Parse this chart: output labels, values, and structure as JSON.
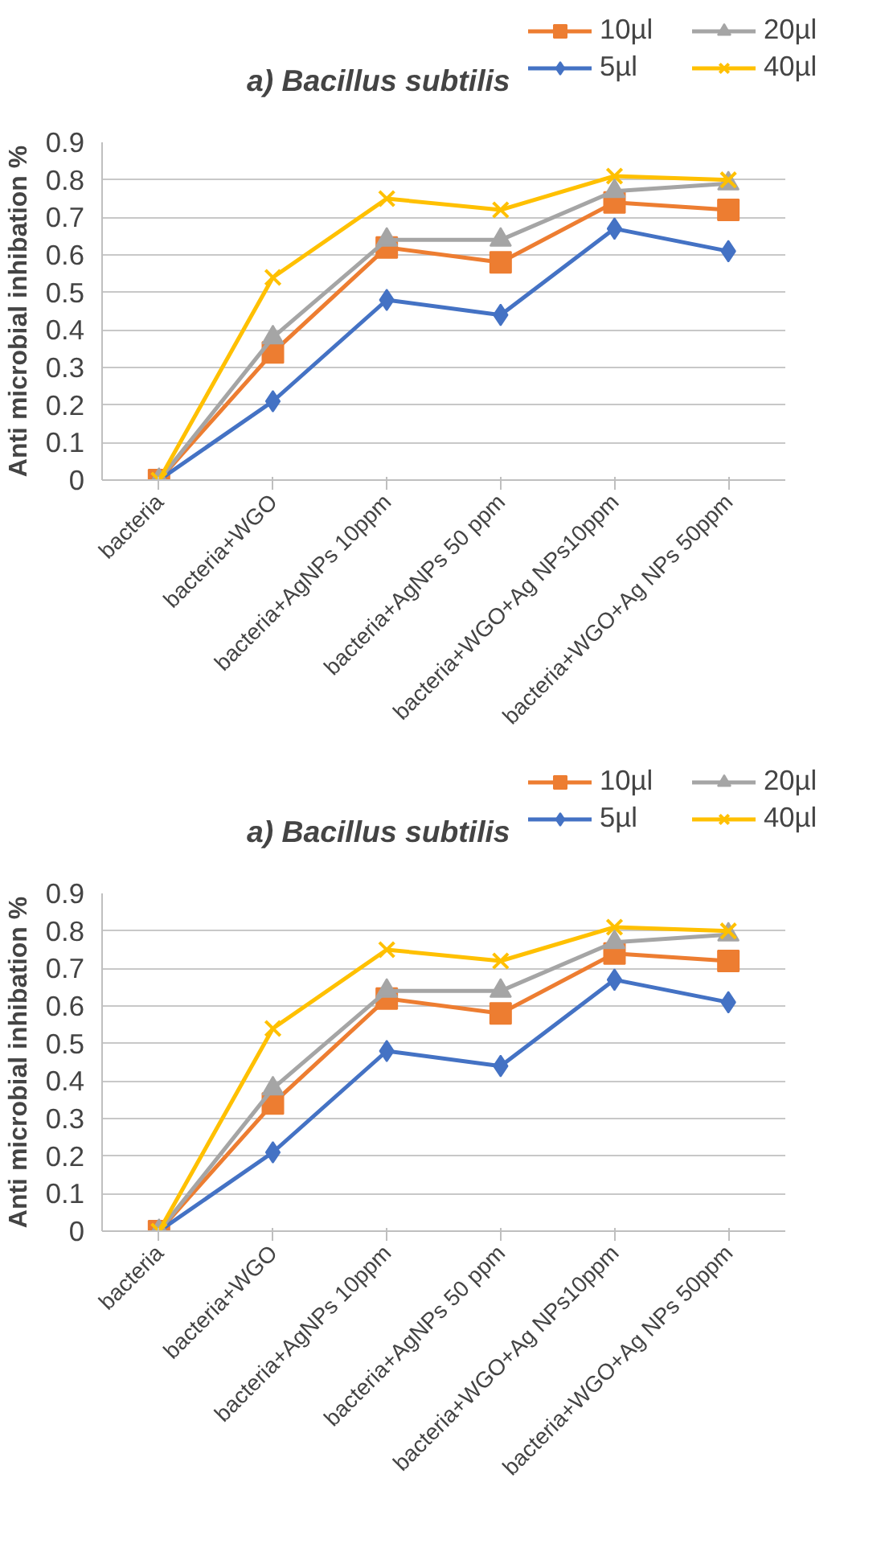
{
  "chart_data": [
    {
      "type": "line",
      "title": "a) Bacillus subtilis",
      "ylabel": "Anti microbial inhibation %",
      "categories": [
        "bacteria",
        "bacteria+WGO",
        "bacteria+AgNPs 10ppm",
        "bacteria+AgNPs 50 ppm",
        "bacteria+WGO+Ag NPs10ppm",
        "bacteria+WGO+Ag NPs 50ppm"
      ],
      "ylim": [
        0,
        0.9
      ],
      "yticks": [
        0,
        0.1,
        0.2,
        0.3,
        0.4,
        0.5,
        0.6,
        0.7,
        0.8,
        0.9
      ],
      "grid": "y",
      "legend": "top right",
      "series": [
        {
          "name": "10µl",
          "color": "#ed7d31",
          "marker": "square",
          "values": [
            0,
            0.34,
            0.62,
            0.58,
            0.74,
            0.72
          ]
        },
        {
          "name": "5µl",
          "color": "#4472c4",
          "marker": "diamond",
          "values": [
            0,
            0.21,
            0.48,
            0.44,
            0.67,
            0.61
          ]
        },
        {
          "name": "20µl",
          "color": "#a5a5a5",
          "marker": "triangle",
          "values": [
            0,
            0.38,
            0.64,
            0.64,
            0.77,
            0.79
          ]
        },
        {
          "name": "40µl",
          "color": "#ffc000",
          "marker": "cross",
          "values": [
            0,
            0.54,
            0.75,
            0.72,
            0.81,
            0.8
          ]
        }
      ]
    },
    {
      "type": "line",
      "title": "a) Bacillus subtilis",
      "ylabel": "Anti microbial inhibation %",
      "categories": [
        "bacteria",
        "bacteria+WGO",
        "bacteria+AgNPs 10ppm",
        "bacteria+AgNPs 50 ppm",
        "bacteria+WGO+Ag NPs10ppm",
        "bacteria+WGO+Ag NPs 50ppm"
      ],
      "ylim": [
        0,
        0.9
      ],
      "yticks": [
        0,
        0.1,
        0.2,
        0.3,
        0.4,
        0.5,
        0.6,
        0.7,
        0.8,
        0.9
      ],
      "grid": "y",
      "legend": "top right",
      "series": [
        {
          "name": "10µl",
          "color": "#ed7d31",
          "marker": "square",
          "values": [
            0,
            0.34,
            0.62,
            0.58,
            0.74,
            0.72
          ]
        },
        {
          "name": "5µl",
          "color": "#4472c4",
          "marker": "diamond",
          "values": [
            0,
            0.21,
            0.48,
            0.44,
            0.67,
            0.61
          ]
        },
        {
          "name": "20µl",
          "color": "#a5a5a5",
          "marker": "triangle",
          "values": [
            0,
            0.38,
            0.64,
            0.64,
            0.77,
            0.79
          ]
        },
        {
          "name": "40µl",
          "color": "#ffc000",
          "marker": "cross",
          "values": [
            0,
            0.54,
            0.75,
            0.72,
            0.81,
            0.8
          ]
        }
      ]
    }
  ]
}
